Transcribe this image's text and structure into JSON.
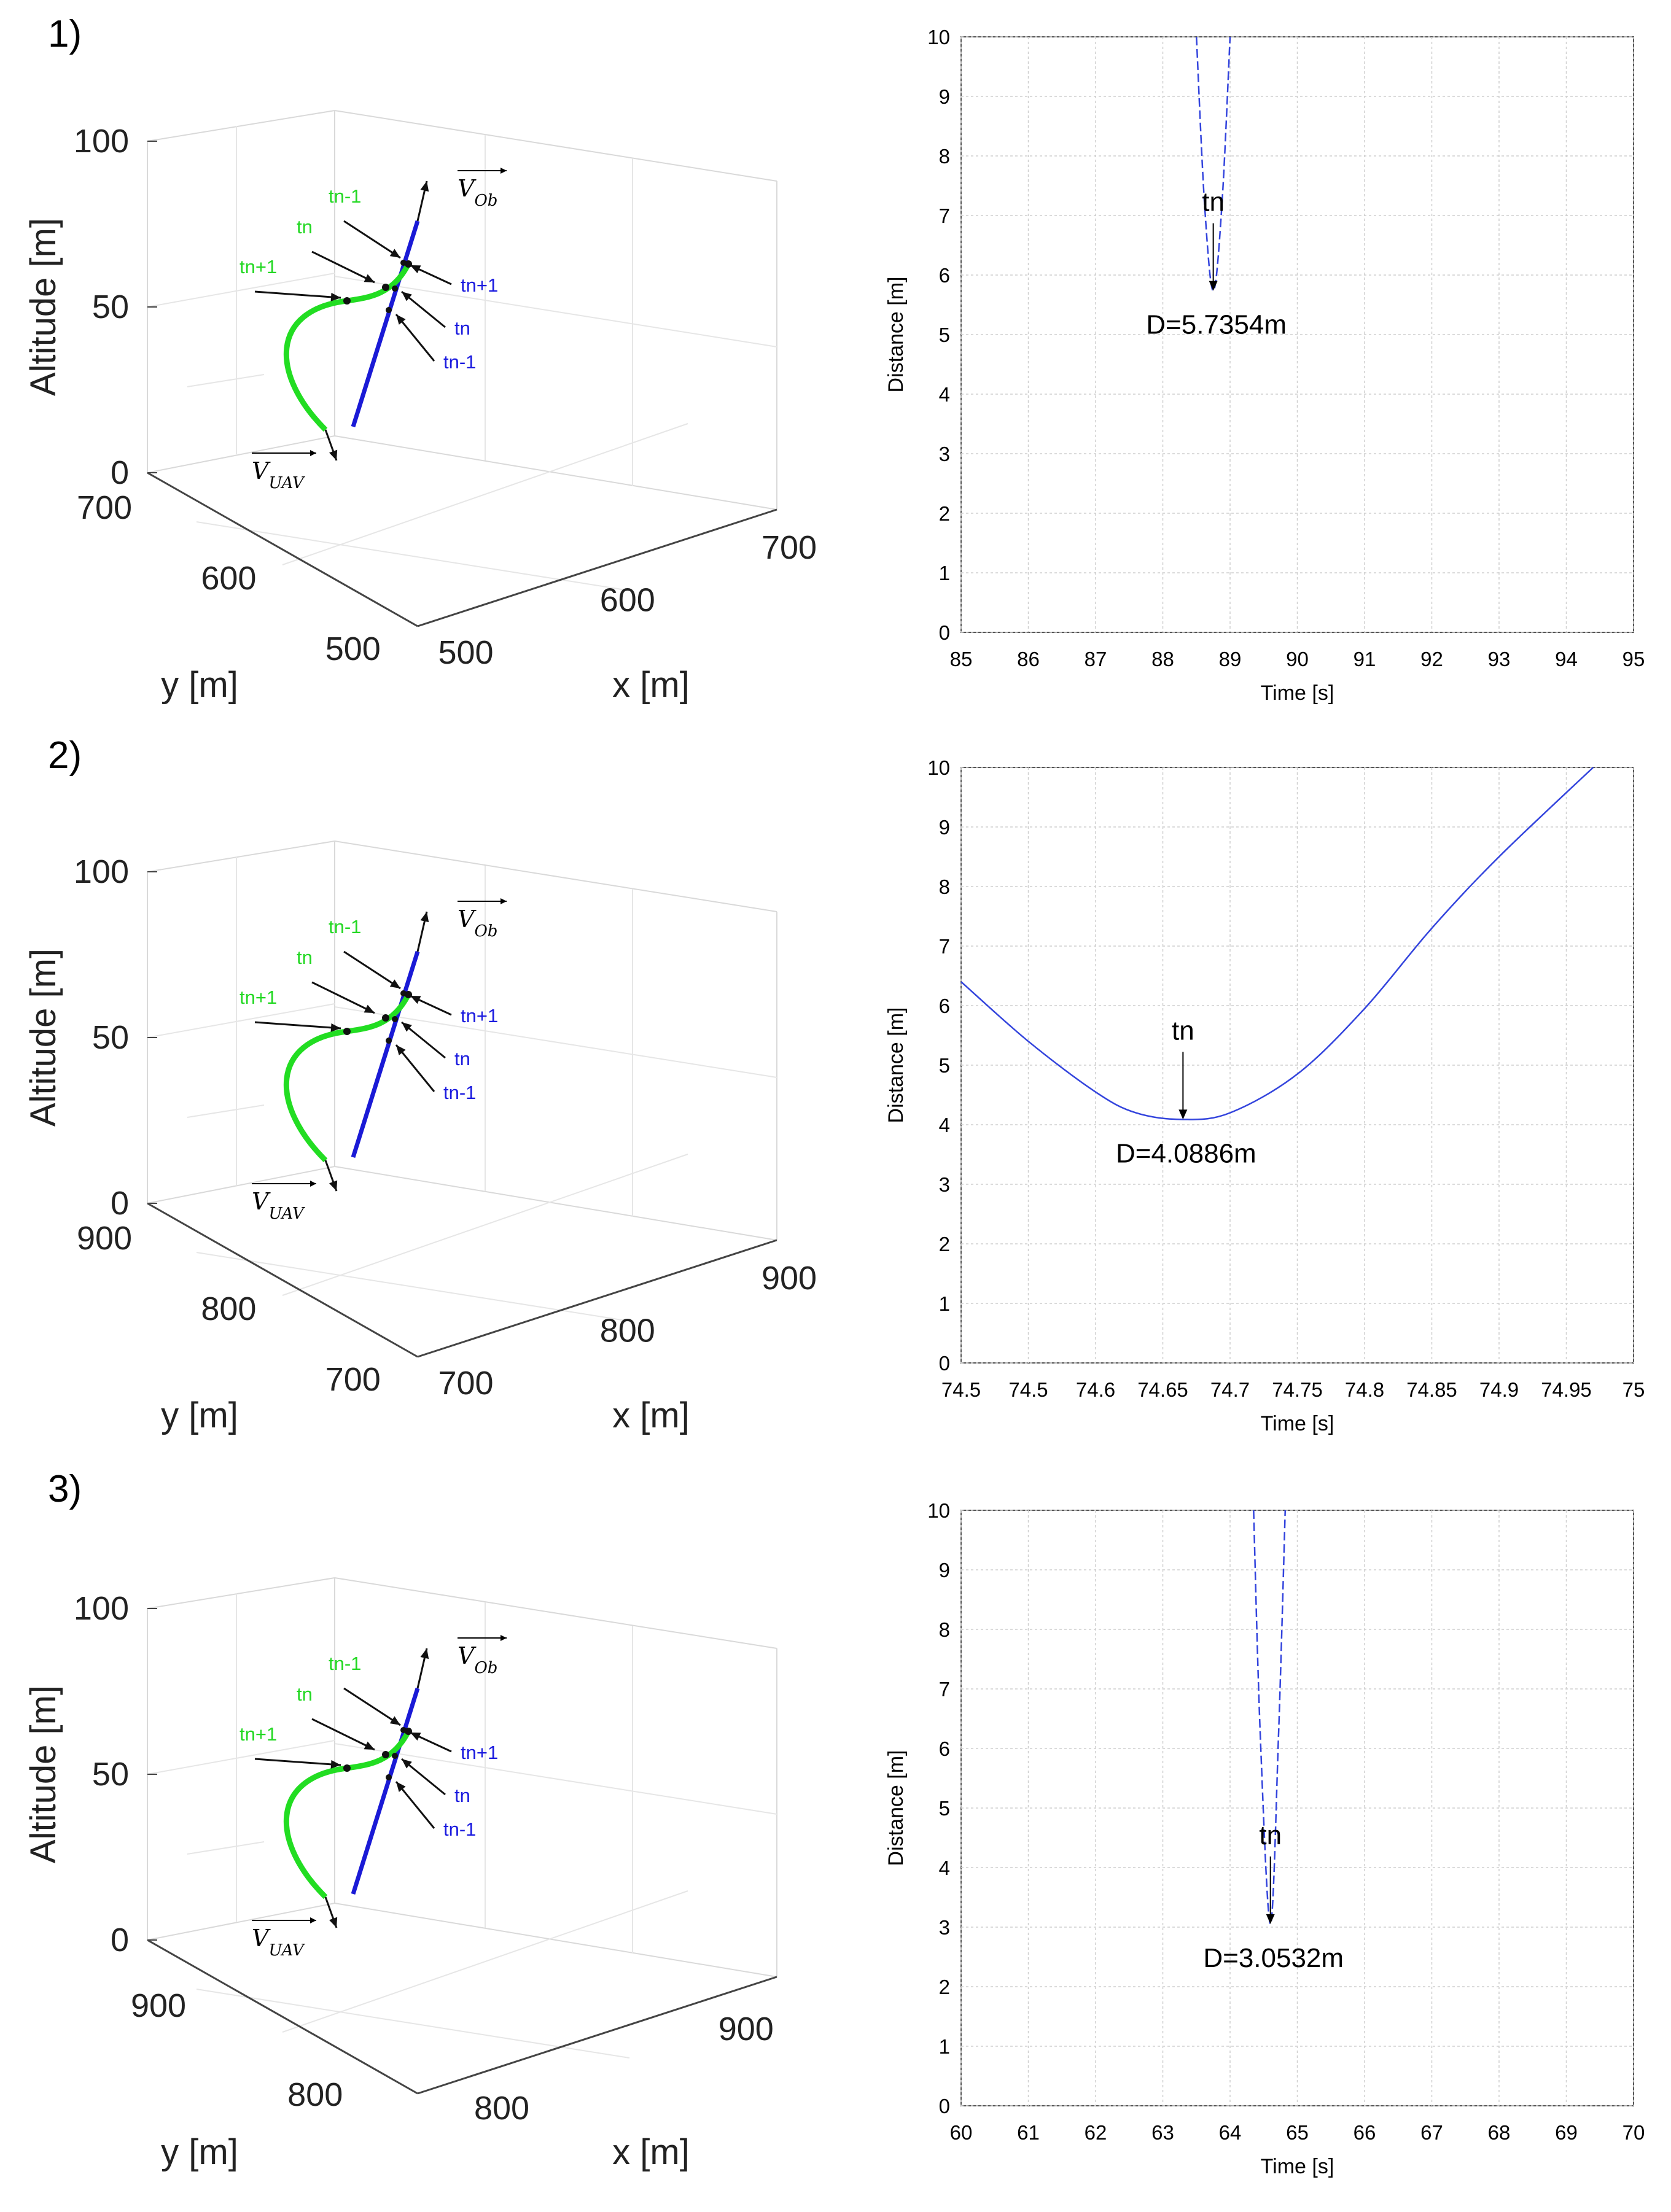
{
  "panels": [
    {
      "label": "1)",
      "trajectory_plot": {
        "zlabel": "Altitude [m]",
        "ylabel": "y [m]",
        "xlabel": "x [m]",
        "z_ticks": [
          "0",
          "50",
          "100"
        ],
        "y_ticks": [
          "700",
          "600",
          "500"
        ],
        "x_ticks": [
          "500",
          "600",
          "700"
        ],
        "uav_label": "V_UAV",
        "obstacle_label": "V_Ob",
        "uav_markers": [
          "tn-1",
          "tn",
          "tn+1"
        ],
        "obstacle_markers": [
          "tn+1",
          "tn",
          "tn-1"
        ]
      },
      "chart_data": {
        "type": "line",
        "xlabel": "Time [s]",
        "ylabel": "Distance [m]",
        "xlim": [
          85,
          95
        ],
        "ylim": [
          0,
          10
        ],
        "x_ticks": [
          "85",
          "86",
          "87",
          "88",
          "89",
          "90",
          "91",
          "92",
          "93",
          "94",
          "95"
        ],
        "y_ticks": [
          "0",
          "1",
          "2",
          "3",
          "4",
          "5",
          "6",
          "7",
          "8",
          "9",
          "10"
        ],
        "grid": true,
        "series": [
          {
            "color": "#3344dd",
            "style": "dashed",
            "x": [
              88.5,
              88.62,
              88.75,
              88.88,
              89.0
            ],
            "y": [
              10,
              7.2,
              5.7354,
              7.2,
              10
            ]
          }
        ],
        "min_time": 88.75,
        "annotations": {
          "marker": "tn",
          "min_label": "D=5.7354m"
        }
      }
    },
    {
      "label": "2)",
      "trajectory_plot": {
        "zlabel": "Altitude [m]",
        "ylabel": "y [m]",
        "xlabel": "x [m]",
        "z_ticks": [
          "0",
          "50",
          "100"
        ],
        "y_ticks": [
          "900",
          "800",
          "700"
        ],
        "x_ticks": [
          "700",
          "800",
          "900"
        ],
        "uav_label": "V_UAV",
        "obstacle_label": "V_Ob",
        "uav_markers": [
          "tn-1",
          "tn",
          "tn+1"
        ],
        "obstacle_markers": [
          "tn+1",
          "tn",
          "tn-1"
        ]
      },
      "chart_data": {
        "type": "line",
        "xlabel": "Time [s]",
        "ylabel": "Distance [m]",
        "xlim": [
          74.5,
          75
        ],
        "ylim": [
          0,
          10
        ],
        "x_ticks": [
          "74.5",
          "74.5",
          "74.6",
          "74.65",
          "74.7",
          "74.75",
          "74.8",
          "74.85",
          "74.9",
          "74.95",
          "75"
        ],
        "y_ticks": [
          "0",
          "1",
          "2",
          "3",
          "4",
          "5",
          "6",
          "7",
          "8",
          "9",
          "10"
        ],
        "grid": true,
        "series": [
          {
            "color": "#3344dd",
            "style": "solid",
            "x": [
              74.5,
              74.55,
              74.6,
              74.63,
              74.665,
              74.7,
              74.75,
              74.8,
              74.85,
              74.9,
              74.97
            ],
            "y": [
              6.4,
              5.4,
              4.55,
              4.2,
              4.0886,
              4.2,
              4.85,
              5.95,
              7.3,
              8.5,
              10
            ]
          }
        ],
        "min_time": 74.665,
        "annotations": {
          "marker": "tn",
          "min_label": "D=4.0886m"
        }
      }
    },
    {
      "label": "3)",
      "trajectory_plot": {
        "zlabel": "Altitude [m]",
        "ylabel": "y [m]",
        "xlabel": "x [m]",
        "z_ticks": [
          "0",
          "50",
          "100"
        ],
        "y_ticks": [
          "900",
          "800"
        ],
        "x_ticks": [
          "800",
          "900"
        ],
        "uav_label": "V_UAV",
        "obstacle_label": "V_Ob",
        "uav_markers": [
          "tn-1",
          "tn",
          "tn+1"
        ],
        "obstacle_markers": [
          "tn+1",
          "tn",
          "tn-1"
        ]
      },
      "chart_data": {
        "type": "line",
        "xlabel": "Time [s]",
        "ylabel": "Distance [m]",
        "xlim": [
          60,
          70
        ],
        "ylim": [
          0,
          10
        ],
        "x_ticks": [
          "60",
          "61",
          "62",
          "63",
          "64",
          "65",
          "66",
          "67",
          "68",
          "69",
          "70"
        ],
        "y_ticks": [
          "0",
          "1",
          "2",
          "3",
          "4",
          "5",
          "6",
          "7",
          "8",
          "9",
          "10"
        ],
        "grid": true,
        "series": [
          {
            "color": "#3344dd",
            "style": "dashed",
            "x": [
              64.35,
              64.45,
              64.6,
              64.72,
              64.82
            ],
            "y": [
              10,
              6.2,
              3.0532,
              6.2,
              10
            ]
          }
        ],
        "min_time": 64.6,
        "annotations": {
          "marker": "tn",
          "min_label": "D=3.0532m"
        }
      }
    }
  ]
}
